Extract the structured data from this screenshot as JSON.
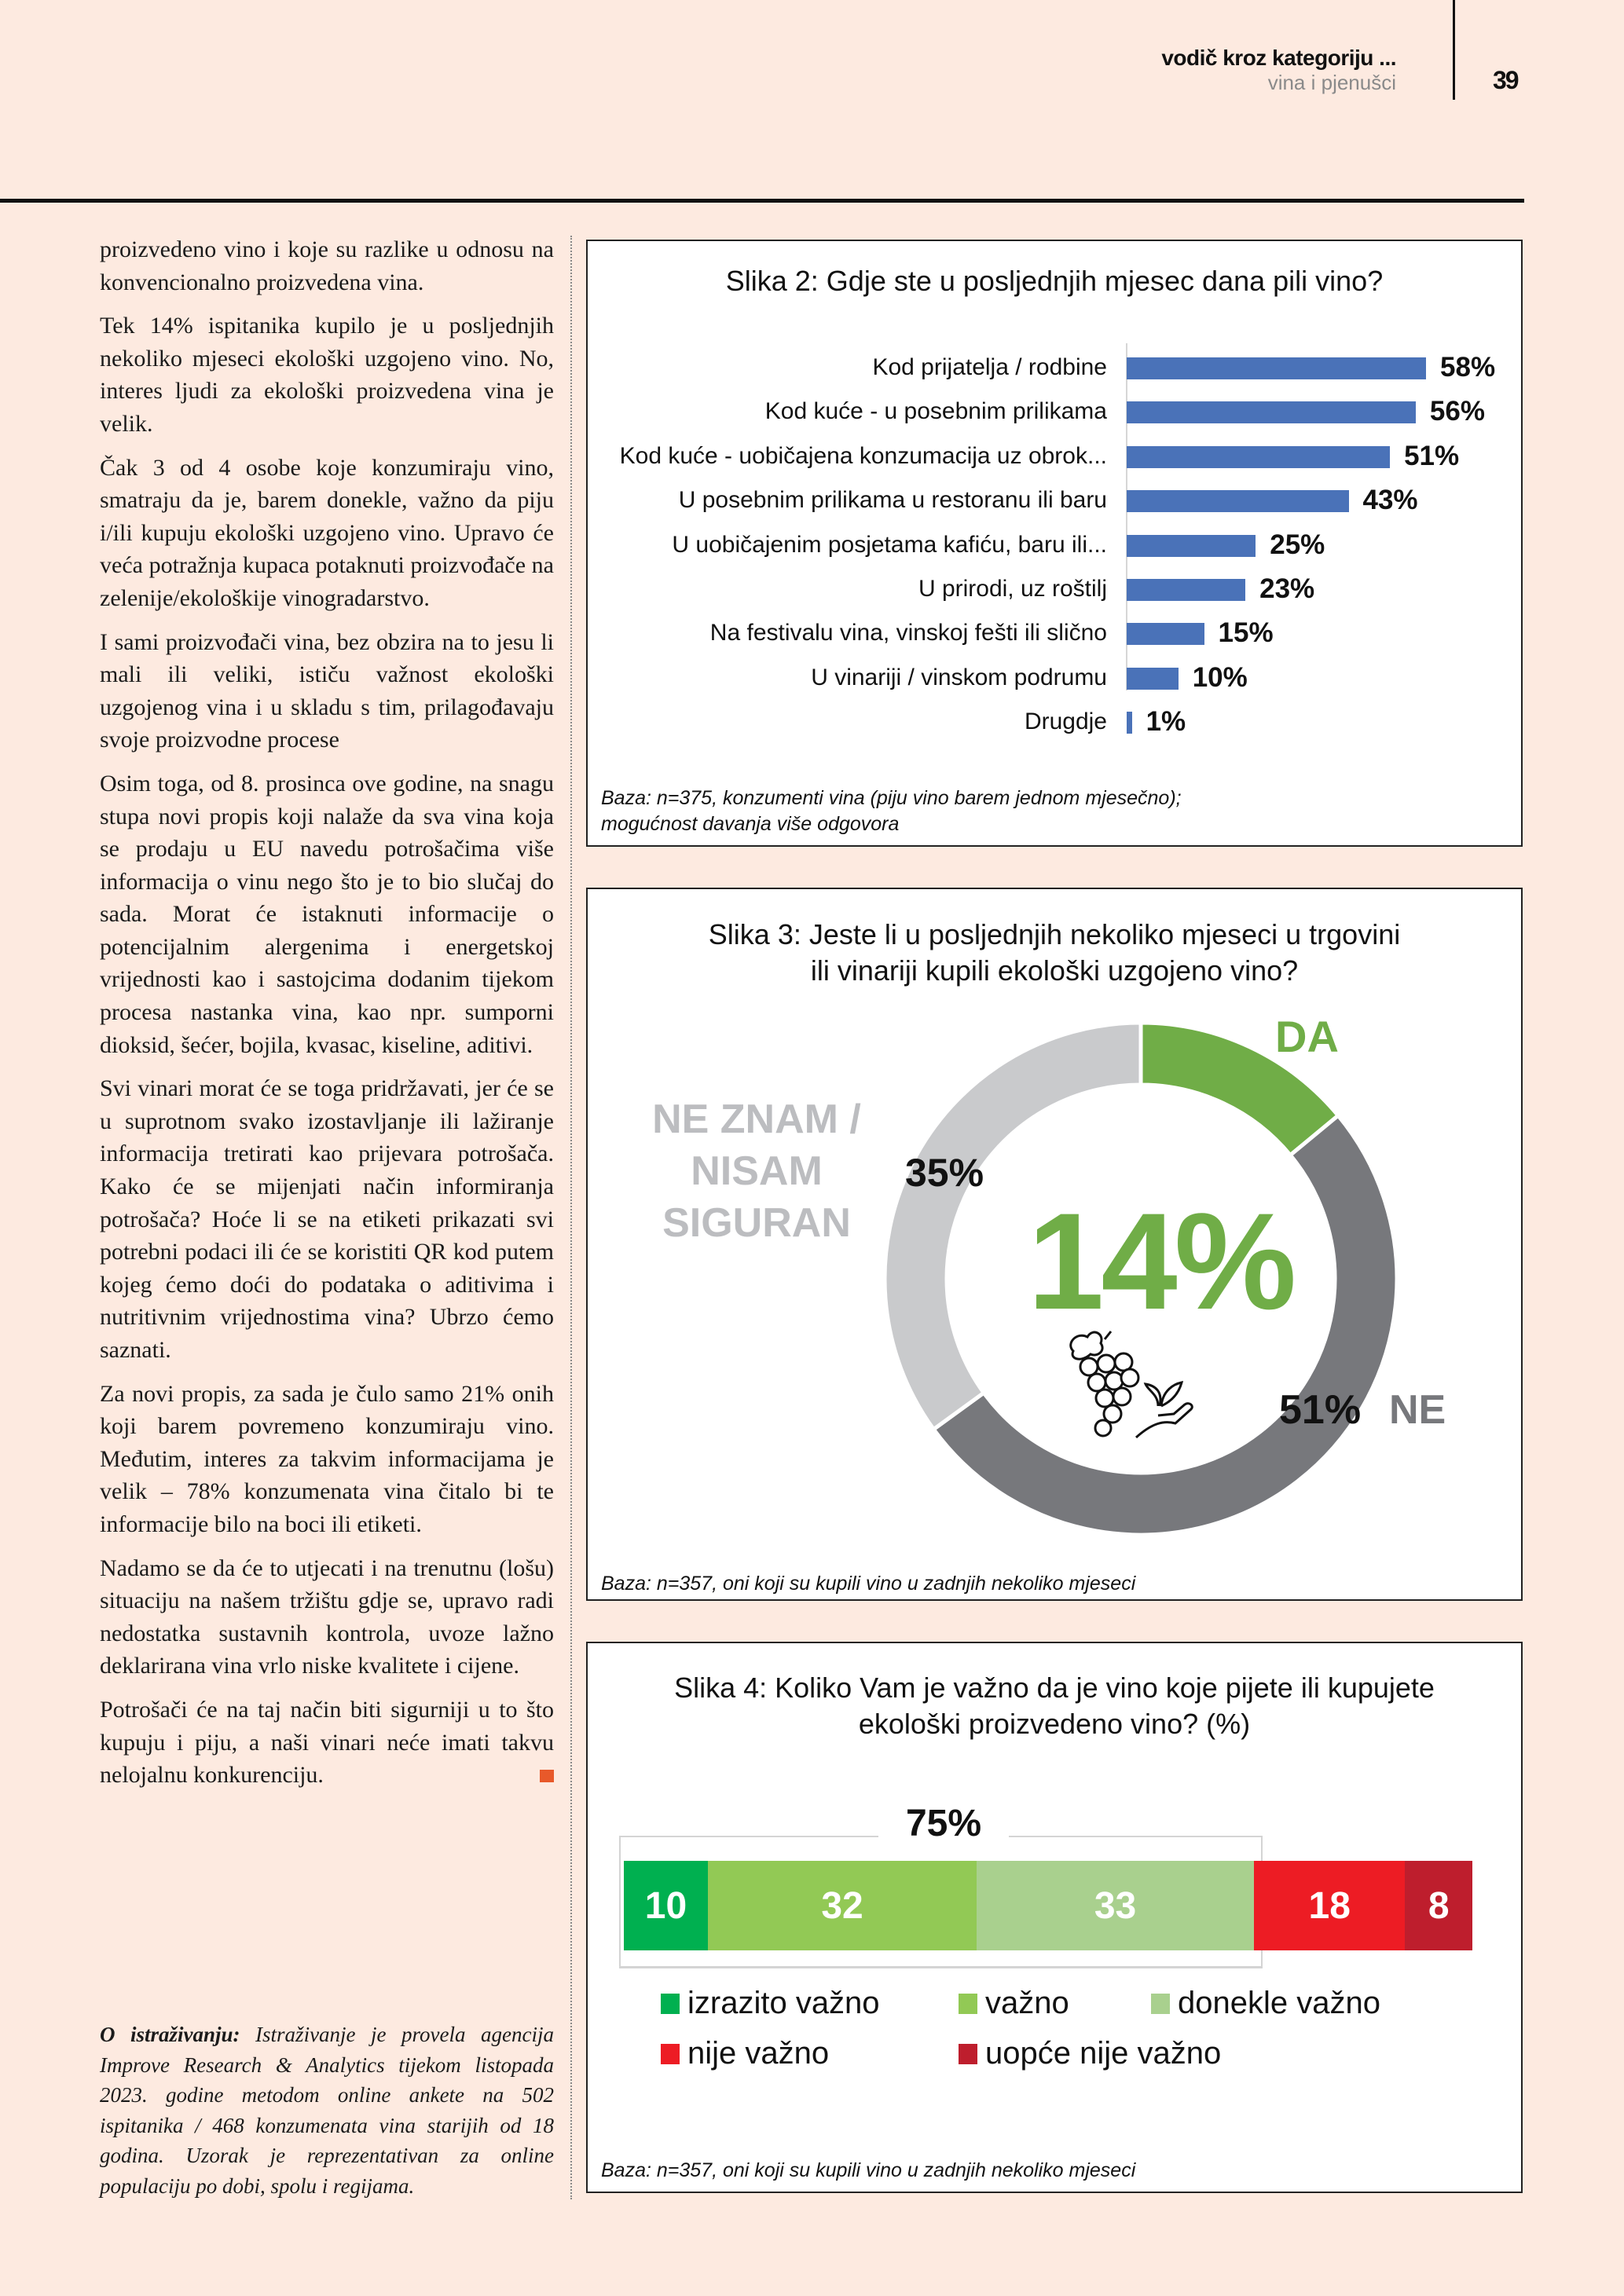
{
  "header": {
    "section": "vodič kroz kategoriju ...",
    "subsection": "vina i pjenušci",
    "page_number": "39"
  },
  "article": {
    "paragraphs": [
      "proizvedeno vino i koje su razlike u odno­su na konvencionalno proizvedena vina.",
      "Tek 14% ispitanika kupilo je u posljednjih nekoliko mjeseci ekološki uzgojeno vino. No, interes ljudi za ekološki proizvedena vina je velik.",
      "Čak 3 od 4 osobe koje konzumiraju vino, smatraju da je, barem donekle, važno da piju i/ili kupuju ekološki uzgojeno vino. Upravo će veća potražnja kupaca pota­knuti proizvođače na zelenije/ekološkije vinogradarstvo.",
      "I sami proizvođači vina, bez obzira na to jesu li mali ili veliki, ističu važnost eko­loški uzgojenog vina i u skladu s tim, pri­lagođavaju svoje proizvodne procese",
      "Osim toga, od 8. prosinca ove godine, na snagu stupa novi propis koji nalaže da sva vina koja se prodaju u EU navedu potro­šačima više informacija o vinu nego što je to bio slučaj do sada. Morat će istaknuti informacije o potencijalnim alergenima i energetskoj vrijednosti kao i sastojcima dodanim tijekom procesa nastanka vina, kao npr. sumporni dioksid, šećer, bojila, kvasac, kiseline, aditivi.",
      "Svi vinari morat će se toga pridržavati, jer će se u suprotnom svako izostavljanje ili lažiranje informacija tretirati kao prijeva­ra potrošača. Kako će se mijenjati način informiranja potrošača? Hoće li se na eti­keti prikazati svi potrebni podaci ili će se koristiti QR kod putem kojeg ćemo doći do podataka o aditivima i nutritivnim vrijed­nostima vina? Ubrzo ćemo saznati.",
      "Za novi propis, za sada je čulo samo 21% onih koji barem povremeno konzumiraju vino. Međutim, interes za takvim infor­macijama je velik – 78% konzumenata vina čitalo bi te informacije bilo na boci ili etiketi.",
      "Nadamo se da će to utjecati i na trenutnu (lošu) situaciju na našem tržištu gdje se, upravo radi nedostatka sustavnih kontro­la, uvoze lažno deklarirana vina vrlo niske kvalitete i cijene.",
      "Potrošači će na taj način biti sigurniji u to što kupuju i piju, a naši vinari neće imati takvu nelojalnu konkurenciju."
    ],
    "about_label": "O istraživanju:",
    "about_text": " Istraživanje je provela agencija Improve Research & Analytics tijekom listopada 2023. godine metodom online ankete na 502 ispitanika / 468 konzumenata vina starijih od 18 godina. Uzorak je reprezentativan za online populaciju po dobi, spolu i regijama.",
    "end_mark_color": "#e8592a"
  },
  "chart_data": [
    {
      "type": "bar",
      "orientation": "horizontal",
      "title": "Slika 2: Gdje ste u posljednjih mjesec dana pili vino?",
      "categories": [
        "Kod prijatelja / rodbine",
        "Kod kuće - u posebnim prilikama",
        "Kod kuće - uobičajena konzumacija uz obrok...",
        "U posebnim prilikama u restoranu ili baru",
        "U uobičajenim posjetama kafiću, baru ili...",
        "U prirodi, uz roštilj",
        "Na festivalu vina, vinskoj fešti ili slično",
        "U vinariji / vinskom podrumu",
        "Drugdje"
      ],
      "values": [
        58,
        56,
        51,
        43,
        25,
        23,
        15,
        10,
        1
      ],
      "value_labels": [
        "58%",
        "56%",
        "51%",
        "43%",
        "25%",
        "23%",
        "15%",
        "10%",
        "1%"
      ],
      "color": "#4a72b8",
      "footnote": [
        "Baza: n=375, konzumenti vina (piju vino barem jednom  mjesečno);",
        "mogućnost davanja više odgovora"
      ]
    },
    {
      "type": "pie",
      "variant": "donut",
      "title": [
        "Slika 3: Jeste li u posljednjih nekoliko mjeseci u trgovini",
        "ili vinariji kupili ekološki uzgojeno vino?"
      ],
      "slices": [
        {
          "label": "DA",
          "value": 14,
          "color": "#70ad47"
        },
        {
          "label": "NE",
          "value": 51,
          "color": "#77787c"
        },
        {
          "label_lines": [
            "NE ZNAM /",
            "NISAM",
            "SIGURAN"
          ],
          "value": 35,
          "color": "#c9cacc"
        }
      ],
      "value_labels": {
        "da": "14%",
        "ne": "51%",
        "ne_znam": "35%"
      },
      "label_colors": {
        "da": "#70ad47",
        "ne": "#77787c",
        "ne_znam": "#bcbdc0"
      },
      "center_icon": "grapes-and-seedling-in-hand-icon",
      "footnote": "Baza: n=357, oni koji su kupili vino u zadnjih nekoliko mjeseci"
    },
    {
      "type": "bar",
      "orientation": "horizontal-stacked",
      "title": [
        "Slika 4: Koliko Vam je važno da je vino koje pijete ili kupujete",
        "ekološki proizvedeno vino? (%)"
      ],
      "series": [
        {
          "name": "izrazito važno",
          "value": 10,
          "color": "#00b050"
        },
        {
          "name": "važno",
          "value": 32,
          "color": "#92c955"
        },
        {
          "name": "donekle važno",
          "value": 33,
          "color": "#a9d08e"
        },
        {
          "name": "nije važno",
          "value": 18,
          "color": "#ed1c24"
        },
        {
          "name": "uopće nije važno",
          "value": 8,
          "color": "#be1e2d"
        }
      ],
      "bracket_label": "75%",
      "legend_placement": "bottom",
      "footnote": "Baza: n=357, oni koji su kupili vino u zadnjih nekoliko mjeseci"
    }
  ]
}
